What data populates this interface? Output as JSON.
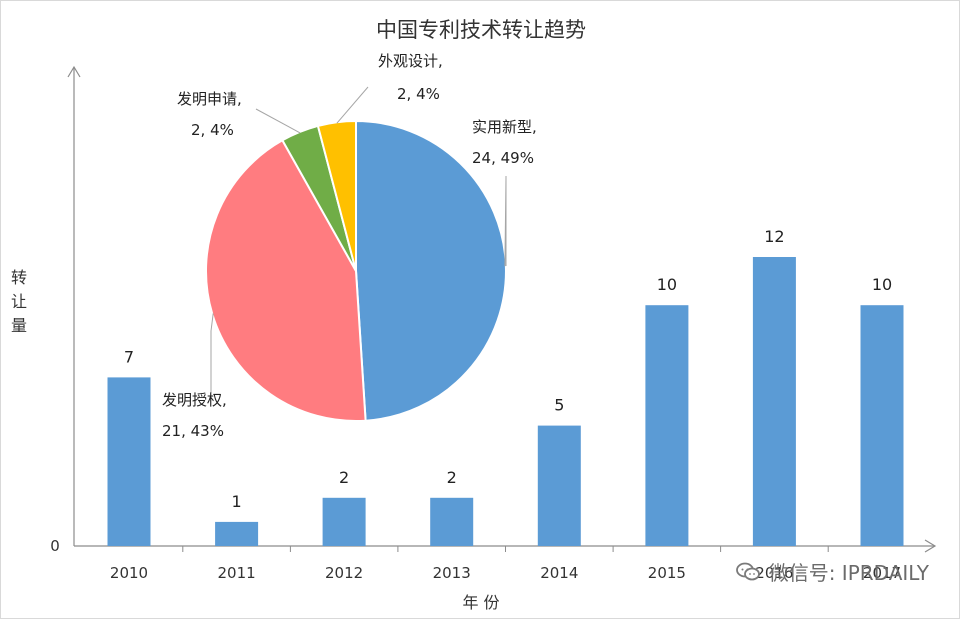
{
  "chart_data": [
    {
      "type": "bar",
      "title": "中国专利技术转让趋势",
      "xlabel": "年 份",
      "ylabel": "转让量",
      "categories": [
        "2010",
        "2011",
        "2012",
        "2013",
        "2014",
        "2015",
        "2016",
        "2017"
      ],
      "values": [
        7,
        1,
        2,
        2,
        5,
        10,
        12,
        10
      ],
      "ylim": [
        0,
        12
      ],
      "y_ticks_shown": [
        "0"
      ],
      "grid": false,
      "color": "#5B9BD5"
    },
    {
      "type": "pie",
      "slices": [
        {
          "name": "实用新型",
          "value": 24,
          "percent": "49%",
          "label_line1": "实用新型,",
          "label_line2": "24, 49%",
          "color": "#5B9BD5"
        },
        {
          "name": "发明授权",
          "value": 21,
          "percent": "43%",
          "label_line1": "发明授权,",
          "label_line2": "21, 43%",
          "color": "#FF7C80"
        },
        {
          "name": "发明申请",
          "value": 2,
          "percent": "4%",
          "label_line1": "发明申请,",
          "label_line2": "2, 4%",
          "color": "#70AD47"
        },
        {
          "name": "外观设计",
          "value": 2,
          "percent": "4%",
          "label_line1": "外观设计,",
          "label_line2": "2, 4%",
          "color": "#FFC000"
        }
      ]
    }
  ],
  "watermark": {
    "text": "微信号: IPRDAILY",
    "icon": "wechat-icon"
  }
}
